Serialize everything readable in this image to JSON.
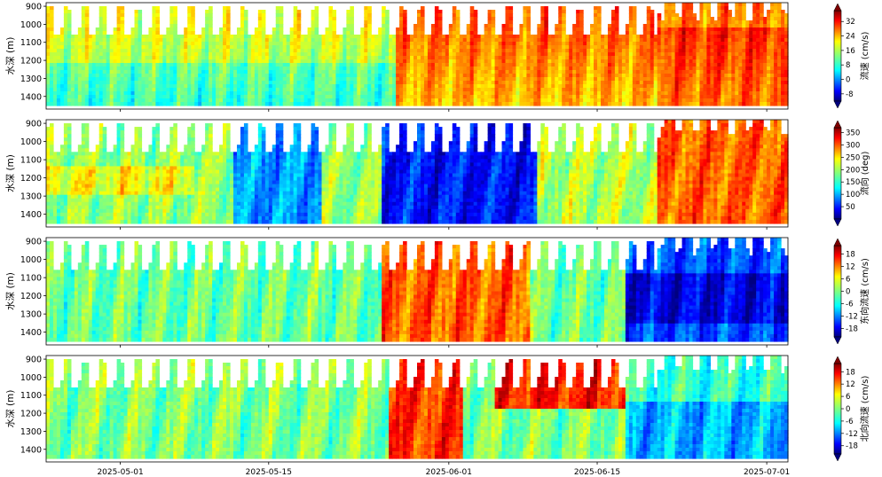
{
  "chart_data": [
    {
      "type": "heatmap",
      "ylabel": "水深 (m)",
      "yticks": [
        900,
        1000,
        1100,
        1200,
        1300,
        1400
      ],
      "colorbar_label": "流速 (cm/s)",
      "colorbar_ticks": [
        -8,
        0,
        8,
        16,
        24,
        32
      ],
      "colormap": "jet",
      "clim": [
        -12,
        38
      ]
    },
    {
      "type": "heatmap",
      "ylabel": "水深 (m)",
      "yticks": [
        900,
        1000,
        1100,
        1200,
        1300,
        1400
      ],
      "colorbar_label": "流向 (deg)",
      "colorbar_ticks": [
        50,
        100,
        150,
        200,
        250,
        300,
        350
      ],
      "colormap": "jet",
      "clim": [
        0,
        370
      ]
    },
    {
      "type": "heatmap",
      "ylabel": "水深 (m)",
      "yticks": [
        900,
        1000,
        1100,
        1200,
        1300,
        1400
      ],
      "colorbar_label": "东向流速 (cm/s)",
      "colorbar_ticks": [
        -18,
        -12,
        -6,
        0,
        6,
        12,
        18
      ],
      "colormap": "jet",
      "clim": [
        -22,
        22
      ]
    },
    {
      "type": "heatmap",
      "ylabel": "水深 (m)",
      "yticks": [
        900,
        1000,
        1100,
        1200,
        1300,
        1400
      ],
      "colorbar_label": "北向流速 (cm/s)",
      "colorbar_ticks": [
        -18,
        -12,
        -6,
        0,
        6,
        12,
        18
      ],
      "colormap": "jet",
      "clim": [
        -22,
        22
      ]
    }
  ],
  "x_axis": {
    "range": [
      "2025-04-24",
      "2025-07-03"
    ],
    "ticks": [
      "2025-05-01",
      "2025-05-15",
      "2025-06-01",
      "2025-06-15",
      "2025-07-01"
    ]
  },
  "y_axis": {
    "range": [
      880,
      1470
    ],
    "inverted": true
  }
}
